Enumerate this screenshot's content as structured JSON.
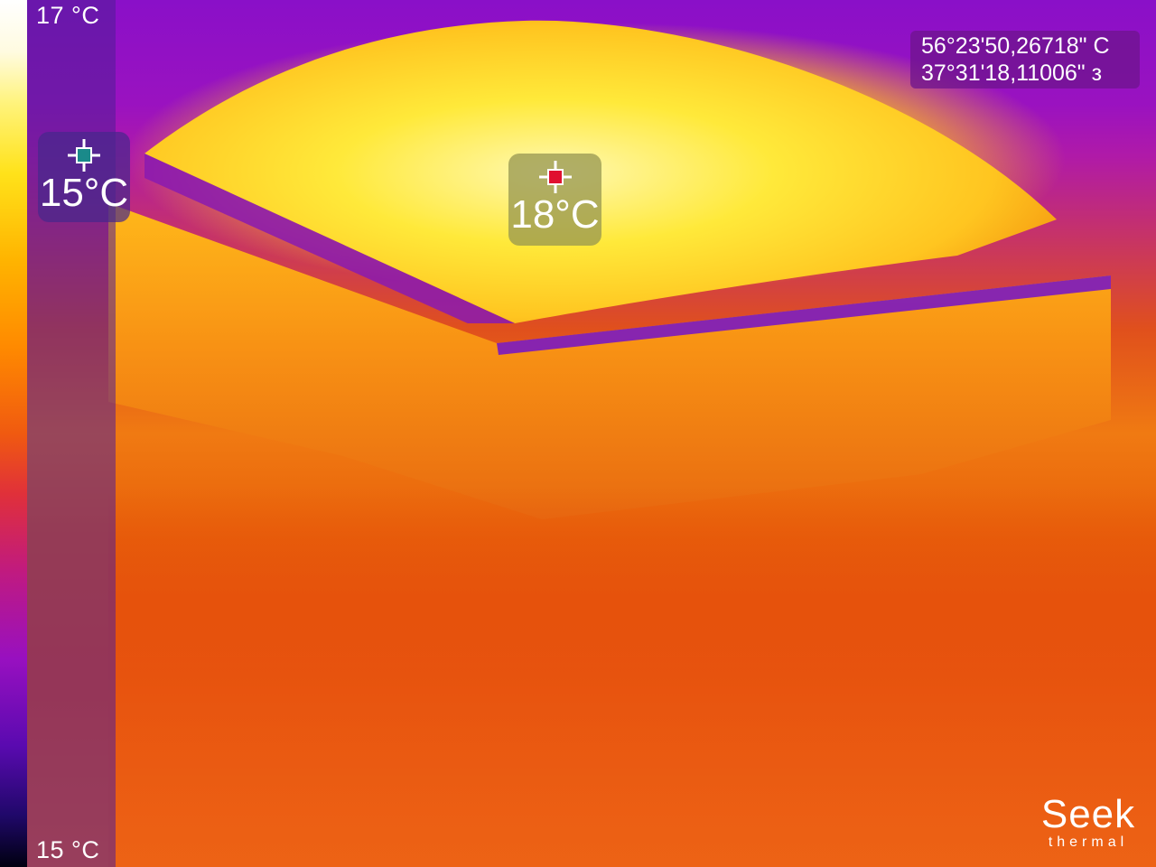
{
  "scale": {
    "max_label": "17 °C",
    "min_label": "15 °C"
  },
  "spots": {
    "min_value": "15°C",
    "max_value": "18°C"
  },
  "gps": {
    "line1": "56°23'50,26718\" С",
    "line2": "37°31'18,11006\" з"
  },
  "brand": {
    "name": "Seek",
    "tagline": "thermal"
  },
  "colors": {
    "min_spot_marker": "#1a8a8a",
    "max_spot_marker": "#e01030"
  },
  "icons": {
    "spot_marker": "crosshair-icon"
  }
}
